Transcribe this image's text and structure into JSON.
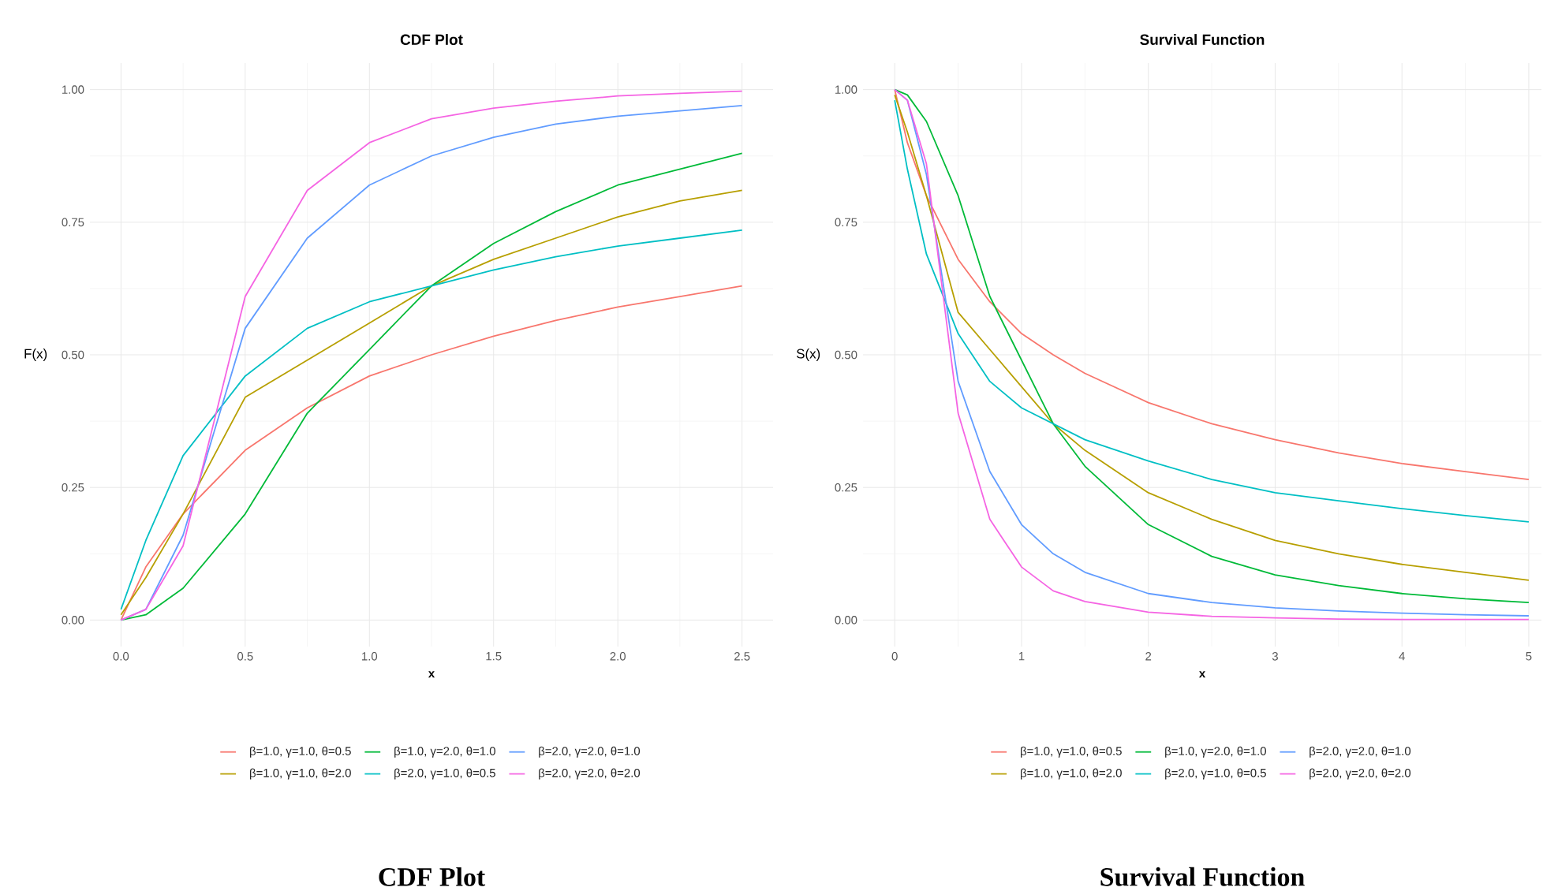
{
  "chart_data": [
    {
      "type": "line",
      "title": "CDF Plot",
      "xlabel": "x",
      "ylabel": "F(x)",
      "annotations": [
        "CDF Plot"
      ],
      "grid": true,
      "legend": "bottom",
      "line_style": "solid",
      "xlim": [
        -0.125,
        2.625
      ],
      "ylim": [
        -0.05,
        1.05
      ],
      "xticks": [
        {
          "value": 0,
          "label": "0.0"
        },
        {
          "value": 0.5,
          "label": "0.5"
        },
        {
          "value": 1,
          "label": "1.0"
        },
        {
          "value": 1.5,
          "label": "1.5"
        },
        {
          "value": 2,
          "label": "2.0"
        },
        {
          "value": 2.5,
          "label": "2.5"
        }
      ],
      "yticks": [
        {
          "value": 0,
          "label": "0.00"
        },
        {
          "value": 0.25,
          "label": "0.25"
        },
        {
          "value": 0.5,
          "label": "0.50"
        },
        {
          "value": 0.75,
          "label": "0.75"
        },
        {
          "value": 1,
          "label": "1.00"
        }
      ],
      "x": [
        0,
        0.1,
        0.25,
        0.5,
        0.75,
        1,
        1.25,
        1.5,
        1.75,
        2,
        2.25,
        2.5
      ],
      "series": [
        {
          "name": "β=1.0, γ=1.0, θ=0.5",
          "color": "#f8766d",
          "values": [
            0.0,
            0.1,
            0.2,
            0.32,
            0.4,
            0.46,
            0.5,
            0.535,
            0.565,
            0.59,
            0.61,
            0.63
          ]
        },
        {
          "name": "β=1.0, γ=1.0, θ=2.0",
          "color": "#b79f00",
          "values": [
            0.01,
            0.08,
            0.2,
            0.42,
            0.49,
            0.56,
            0.63,
            0.68,
            0.72,
            0.76,
            0.79,
            0.81
          ]
        },
        {
          "name": "β=1.0, γ=2.0, θ=1.0",
          "color": "#00ba38",
          "values": [
            0.0,
            0.01,
            0.06,
            0.2,
            0.39,
            0.51,
            0.63,
            0.71,
            0.77,
            0.82,
            0.85,
            0.88
          ]
        },
        {
          "name": "β=2.0, γ=1.0, θ=0.5",
          "color": "#00bfc4",
          "values": [
            0.02,
            0.15,
            0.31,
            0.46,
            0.55,
            0.6,
            0.63,
            0.66,
            0.685,
            0.705,
            0.72,
            0.735
          ]
        },
        {
          "name": "β=2.0, γ=2.0, θ=1.0",
          "color": "#619cff",
          "values": [
            0.0,
            0.02,
            0.16,
            0.55,
            0.72,
            0.82,
            0.875,
            0.91,
            0.935,
            0.95,
            0.96,
            0.97
          ]
        },
        {
          "name": "β=2.0, γ=2.0, θ=2.0",
          "color": "#f564e3",
          "values": [
            0.0,
            0.02,
            0.14,
            0.61,
            0.81,
            0.9,
            0.945,
            0.965,
            0.978,
            0.988,
            0.993,
            0.997
          ]
        }
      ]
    },
    {
      "type": "line",
      "title": "Survival Function",
      "xlabel": "x",
      "ylabel": "S(x)",
      "annotations": [
        "Survival Function"
      ],
      "grid": true,
      "legend": "bottom",
      "line_style": "solid",
      "xlim": [
        -0.25,
        5.1
      ],
      "ylim": [
        -0.05,
        1.05
      ],
      "xticks": [
        0,
        1,
        2,
        3,
        4,
        5
      ],
      "yticks": [
        {
          "value": 0,
          "label": "0.00"
        },
        {
          "value": 0.25,
          "label": "0.25"
        },
        {
          "value": 0.5,
          "label": "0.50"
        },
        {
          "value": 0.75,
          "label": "0.75"
        },
        {
          "value": 1,
          "label": "1.00"
        }
      ],
      "x": [
        0,
        0.1,
        0.25,
        0.5,
        0.75,
        1,
        1.25,
        1.5,
        2,
        2.5,
        3,
        3.5,
        4,
        4.5,
        5
      ],
      "series": [
        {
          "name": "β=1.0, γ=1.0, θ=0.5",
          "color": "#f8766d",
          "values": [
            1.0,
            0.9,
            0.8,
            0.68,
            0.6,
            0.54,
            0.5,
            0.465,
            0.41,
            0.37,
            0.34,
            0.315,
            0.295,
            0.28,
            0.265
          ]
        },
        {
          "name": "β=1.0, γ=1.0, θ=2.0",
          "color": "#b79f00",
          "values": [
            0.99,
            0.92,
            0.8,
            0.58,
            0.51,
            0.44,
            0.37,
            0.32,
            0.24,
            0.19,
            0.15,
            0.125,
            0.105,
            0.09,
            0.075
          ]
        },
        {
          "name": "β=1.0, γ=2.0, θ=1.0",
          "color": "#00ba38",
          "values": [
            1.0,
            0.99,
            0.94,
            0.8,
            0.61,
            0.49,
            0.37,
            0.29,
            0.18,
            0.12,
            0.085,
            0.065,
            0.05,
            0.04,
            0.033
          ]
        },
        {
          "name": "β=2.0, γ=1.0, θ=0.5",
          "color": "#00bfc4",
          "values": [
            0.98,
            0.85,
            0.69,
            0.54,
            0.45,
            0.4,
            0.37,
            0.34,
            0.3,
            0.265,
            0.24,
            0.225,
            0.21,
            0.197,
            0.185
          ]
        },
        {
          "name": "β=2.0, γ=2.0, θ=1.0",
          "color": "#619cff",
          "values": [
            1.0,
            0.98,
            0.84,
            0.45,
            0.28,
            0.18,
            0.125,
            0.09,
            0.05,
            0.033,
            0.023,
            0.017,
            0.013,
            0.01,
            0.008
          ]
        },
        {
          "name": "β=2.0, γ=2.0, θ=2.0",
          "color": "#f564e3",
          "values": [
            1.0,
            0.98,
            0.86,
            0.39,
            0.19,
            0.1,
            0.055,
            0.035,
            0.015,
            0.007,
            0.004,
            0.002,
            0.001,
            0.001,
            0.001
          ]
        }
      ]
    }
  ]
}
